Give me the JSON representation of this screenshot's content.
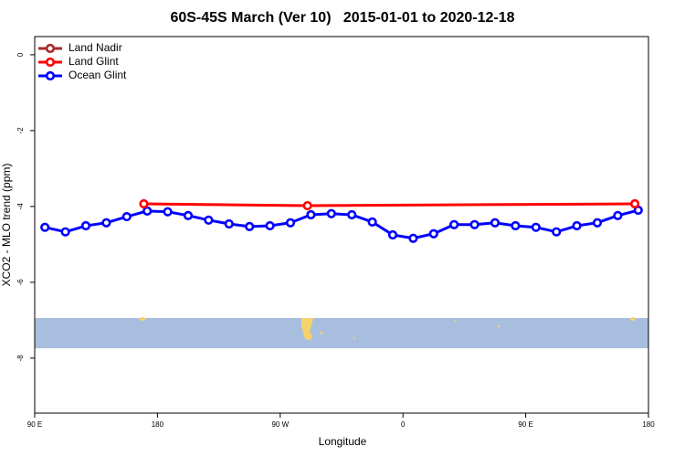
{
  "chart_data": {
    "type": "line",
    "title": "60S-45S March (Ver 10)   2015-01-01 to 2020-12-18",
    "x_label": "Longitude",
    "y_label": "XCO2 - MLO trend (ppm)",
    "xlim": [
      90,
      540
    ],
    "xticks": [
      {
        "value": 90,
        "label": "90 E"
      },
      {
        "value": 180,
        "label": "180"
      },
      {
        "value": 270,
        "label": "90 W"
      },
      {
        "value": 360,
        "label": "0"
      },
      {
        "value": 450,
        "label": "90 E"
      },
      {
        "value": 540,
        "label": "180"
      }
    ],
    "ylim": [
      -9.45,
      0.48
    ],
    "yticks": [
      0,
      -2,
      -4,
      -6,
      -8
    ],
    "legend": "top-left",
    "series": [
      {
        "name": "Land Nadir",
        "color": "#a52a2a",
        "x": [],
        "values": []
      },
      {
        "name": "Land Glint",
        "color": "#ff0000",
        "x": [
          170,
          290,
          530
        ],
        "values": [
          -3.93,
          -3.98,
          -3.93
        ]
      },
      {
        "name": "Ocean Glint",
        "color": "#0000ff",
        "x": [
          97.5,
          112.5,
          127.5,
          142.5,
          157.5,
          172.5,
          187.5,
          202.5,
          217.5,
          232.5,
          247.5,
          262.5,
          277.5,
          292.5,
          307.5,
          322.5,
          337.5,
          352.5,
          367.5,
          382.5,
          397.5,
          412.5,
          427.5,
          442.5,
          457.5,
          472.5,
          487.5,
          502.5,
          517.5,
          532.5
        ],
        "values": [
          -4.55,
          -4.67,
          -4.51,
          -4.43,
          -4.27,
          -4.12,
          -4.14,
          -4.24,
          -4.36,
          -4.46,
          -4.53,
          -4.51,
          -4.43,
          -4.22,
          -4.19,
          -4.22,
          -4.41,
          -4.75,
          -4.84,
          -4.72,
          -4.48,
          -4.48,
          -4.43,
          -4.51,
          -4.55,
          -4.67,
          -4.51,
          -4.43,
          -4.24,
          -4.1
        ]
      }
    ]
  }
}
